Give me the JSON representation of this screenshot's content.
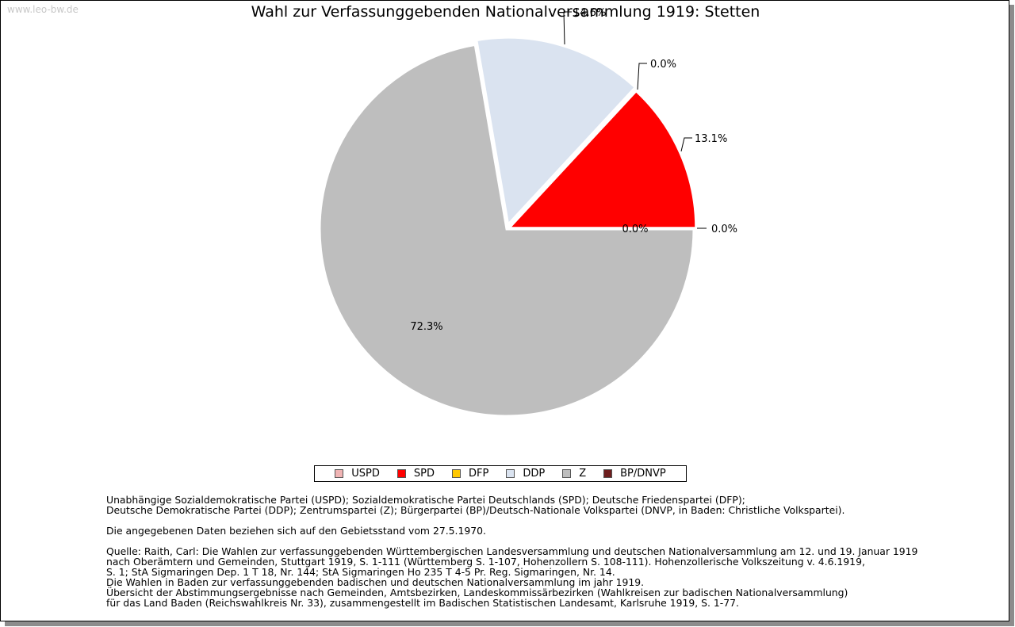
{
  "watermark": "www.leo-bw.de",
  "chart_data": {
    "type": "pie",
    "title": "Wahl zur Verfassunggebenden Nationalversammlung 1919: Stetten",
    "legend_position": "bottom",
    "slices": [
      {
        "name": "USPD",
        "value": 0.0,
        "label": "0.0%",
        "color": "#f0b4b4"
      },
      {
        "name": "SPD",
        "value": 13.1,
        "label": "13.1%",
        "color": "#ff0000"
      },
      {
        "name": "DFP",
        "value": 0.0,
        "label": "0.0%",
        "color": "#ffc800"
      },
      {
        "name": "DDP",
        "value": 14.6,
        "label": "14.6%",
        "color": "#dae3f0"
      },
      {
        "name": "Z",
        "value": 72.3,
        "label": "72.3%",
        "color": "#bebebe"
      },
      {
        "name": "BP/DNVP",
        "value": 0.0,
        "label": "0.0%",
        "color": "#6e1e1e"
      }
    ]
  },
  "notes": {
    "parties": [
      "Unabhängige Sozialdemokratische Partei (USPD); Sozialdemokratische Partei Deutschlands (SPD); Deutsche Friedenspartei (DFP);",
      "Deutsche Demokratische Partei (DDP); Zentrumspartei (Z); Bürgerpartei (BP)/Deutsch-Nationale Volkspartei (DNVP, in Baden: Christliche Volkspartei)."
    ],
    "gebietsstand": "Die angegebenen Daten beziehen sich auf den Gebietsstand vom 27.5.1970.",
    "source": [
      "Quelle: Raith, Carl: Die Wahlen zur verfassunggebenden Württembergischen Landesversammlung und deutschen Nationalversammlung am 12. und 19. Januar 1919",
      "nach Oberämtern und Gemeinden, Stuttgart 1919, S. 1-111 (Württemberg S. 1-107, Hohenzollern S. 108-111). Hohenzollerische Volkszeitung v. 4.6.1919,",
      "S. 1; StA Sigmaringen Dep. 1 T 18, Nr. 144; StA Sigmaringen Ho 235 T 4-5 Pr. Reg. Sigmaringen, Nr. 14.",
      "Die Wahlen in Baden zur verfassunggebenden badischen und deutschen Nationalversammlung im jahr 1919.",
      "Übersicht der Abstimmungsergebnisse nach Gemeinden, Amtsbezirken, Landeskommissärbezirken (Wahlkreisen zur badischen Nationalversammlung)",
      "für das Land Baden (Reichswahlkreis Nr. 33), zusammengestellt im Badischen Statistischen Landesamt, Karlsruhe 1919, S. 1-77."
    ]
  }
}
